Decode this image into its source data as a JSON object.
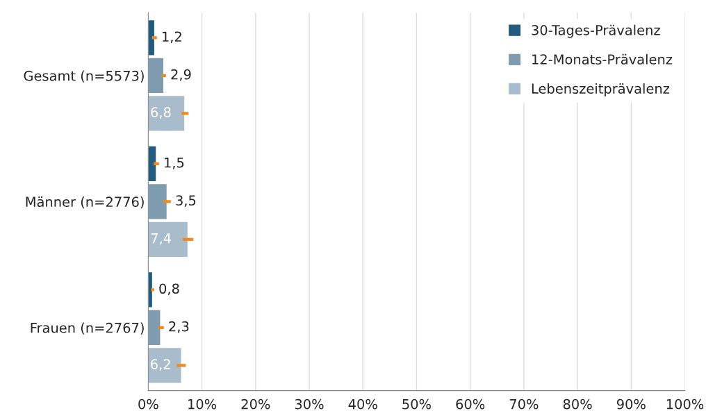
{
  "chart_data": {
    "type": "bar",
    "orientation": "horizontal",
    "categories": [
      "Gesamt (n=5573)",
      "Männer (n=2776)",
      "Frauen (n=2767)"
    ],
    "series": [
      {
        "name": "30-Tages-Prävalenz",
        "color": "#235b7e",
        "values": [
          1.2,
          1.5,
          0.8
        ],
        "value_labels": [
          "1,2",
          "1,5",
          "0,8"
        ],
        "errors": [
          [
            0.7,
            1.6
          ],
          [
            1.0,
            2.0
          ],
          [
            0.5,
            1.1
          ]
        ]
      },
      {
        "name": "12-Monats-Prävalenz",
        "color": "#7f9bb0",
        "values": [
          2.9,
          3.5,
          2.3
        ],
        "value_labels": [
          "2,9",
          "3,5",
          "2,3"
        ],
        "errors": [
          [
            2.5,
            3.3
          ],
          [
            2.8,
            4.2
          ],
          [
            1.9,
            2.9
          ]
        ]
      },
      {
        "name": "Lebenszeitprävalenz",
        "color": "#a9bccb",
        "values": [
          6.8,
          7.4,
          6.2
        ],
        "value_labels": [
          "6,8",
          "7,4",
          "6,2"
        ],
        "errors": [
          [
            6.2,
            7.5
          ],
          [
            6.4,
            8.4
          ],
          [
            5.3,
            7.0
          ]
        ]
      }
    ],
    "xlim": [
      0,
      100
    ],
    "xticks": [
      {
        "value": 0,
        "label": "0%"
      },
      {
        "value": 10,
        "label": "10%"
      },
      {
        "value": 20,
        "label": "20%"
      },
      {
        "value": 30,
        "label": "30%"
      },
      {
        "value": 40,
        "label": "40%"
      },
      {
        "value": 50,
        "label": "50%"
      },
      {
        "value": 60,
        "label": "60%"
      },
      {
        "value": 70,
        "label": "70%"
      },
      {
        "value": 80,
        "label": "80%"
      },
      {
        "value": 90,
        "label": "90%"
      },
      {
        "value": 100,
        "label": "100%"
      }
    ],
    "grid": "x",
    "legend": "top right"
  }
}
